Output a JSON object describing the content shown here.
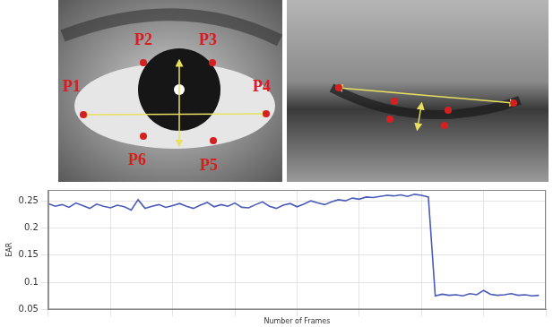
{
  "open_eye": {
    "landmarks": [
      "P1",
      "P2",
      "P3",
      "P4",
      "P5",
      "P6"
    ]
  },
  "chart_data": {
    "type": "line",
    "x_label": "Number of Frames",
    "y_label": "EAR",
    "x": [
      0,
      1,
      2,
      3,
      4,
      5,
      6,
      7,
      8,
      9,
      10,
      11,
      12,
      13,
      14,
      15,
      16,
      17,
      18,
      19,
      20,
      21,
      22,
      23,
      24,
      25,
      26,
      27,
      28,
      29,
      30,
      31,
      32,
      33,
      34,
      35,
      36,
      37,
      38,
      39,
      40,
      41,
      42,
      43,
      44,
      45,
      46,
      47,
      48,
      49,
      50,
      51,
      52,
      53,
      54,
      55,
      56,
      57,
      58,
      59,
      60,
      61,
      62,
      63,
      64,
      65,
      66,
      67,
      68,
      69,
      70,
      71
    ],
    "series": [
      {
        "name": "EAR",
        "color": "#4a5cb8",
        "marker": "none",
        "line_style": "solid",
        "values": [
          0.245,
          0.24,
          0.243,
          0.238,
          0.246,
          0.241,
          0.236,
          0.244,
          0.24,
          0.237,
          0.242,
          0.239,
          0.233,
          0.252,
          0.236,
          0.24,
          0.243,
          0.238,
          0.241,
          0.245,
          0.24,
          0.236,
          0.242,
          0.247,
          0.239,
          0.243,
          0.24,
          0.246,
          0.238,
          0.237,
          0.243,
          0.248,
          0.24,
          0.236,
          0.242,
          0.245,
          0.239,
          0.244,
          0.25,
          0.246,
          0.243,
          0.248,
          0.252,
          0.25,
          0.255,
          0.253,
          0.257,
          0.256,
          0.258,
          0.26,
          0.259,
          0.261,
          0.258,
          0.262,
          0.26,
          0.257,
          0.075,
          0.078,
          0.076,
          0.077,
          0.075,
          0.079,
          0.077,
          0.085,
          0.078,
          0.076,
          0.077,
          0.079,
          0.076,
          0.077,
          0.075,
          0.076
        ]
      }
    ],
    "xlim": [
      0,
      72
    ],
    "xticks": [
      0,
      9,
      18,
      27,
      36,
      45,
      54,
      63,
      72
    ],
    "ylim": [
      0.05,
      0.27
    ],
    "yticks": [
      0.05,
      0.1,
      0.15,
      0.2,
      0.25
    ],
    "grid": true,
    "tick_labels": "y"
  }
}
